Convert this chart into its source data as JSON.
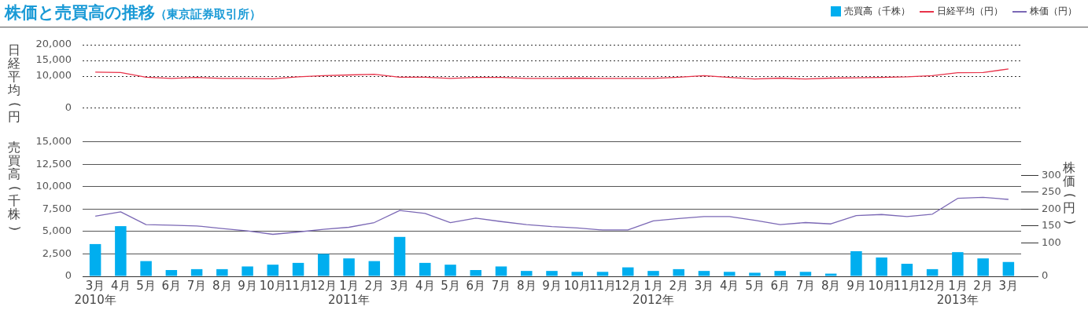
{
  "chart_data": [
    {
      "type": "line",
      "title": "株価と売買高の推移",
      "subtitle": "（東京証券取引所）",
      "ylabel": "日経平均(円)",
      "legend": "top right",
      "tick_labels": "y",
      "grid": "y",
      "categories": [
        null,
        null,
        null,
        null,
        null,
        null,
        null,
        null,
        null,
        null,
        null,
        null,
        null,
        null,
        null,
        null,
        null,
        null,
        null,
        null,
        null,
        null,
        null,
        null,
        null,
        null,
        null,
        null,
        null,
        null,
        null,
        null,
        null,
        null,
        null,
        null,
        null
      ],
      "ylim": [
        0,
        20000
      ],
      "yticks": [
        0,
        {
          "value": 10000,
          "label": "10,000"
        },
        {
          "value": 15000,
          "label": "15,000"
        },
        {
          "value": 20000,
          "label": "20,000"
        }
      ],
      "series": [
        {
          "name": "日経平均（円）",
          "color": "#e8334a",
          "values": [
            11300,
            11200,
            9700,
            9300,
            9600,
            9300,
            9300,
            9200,
            9800,
            10200,
            10400,
            10600,
            9700,
            9700,
            9300,
            9600,
            9600,
            9300,
            9300,
            9400,
            9300,
            9300,
            9300,
            9700,
            10200,
            9600,
            9100,
            9400,
            9100,
            9400,
            9500,
            9600,
            9800,
            10200,
            11100,
            11200,
            12300
          ]
        }
      ]
    },
    {
      "type": "bar",
      "ylabel": "売買高(千株)",
      "y2label": "株価(円)",
      "legend": "top right",
      "grid": "y",
      "categories": [
        "3月\n2010年",
        "4月",
        "5月",
        "6月",
        "7月",
        "8月",
        "9月",
        "10月",
        "11月",
        "12月",
        "1月\n2011年",
        "2月",
        "3月",
        "4月",
        "5月",
        "6月",
        "7月",
        "8月",
        "9月",
        "10月",
        "11月",
        "12月",
        "1月\n2012年",
        "2月",
        "3月",
        "4月",
        "5月",
        "6月",
        "7月",
        "8月",
        "9月",
        "10月",
        "11月",
        "12月",
        "1月\n2013年",
        "2月",
        "3月"
      ],
      "ylim": [
        0,
        15000
      ],
      "yticks": [
        0,
        {
          "value": 2500,
          "label": "2,500"
        },
        {
          "value": 5000,
          "label": "5,000"
        },
        {
          "value": 7500,
          "label": "7,500"
        },
        {
          "value": 10000,
          "label": "10,000"
        },
        {
          "value": 12500,
          "label": "12,500"
        },
        {
          "value": 15000,
          "label": "15,000"
        }
      ],
      "y2lim": [
        0,
        400
      ],
      "y2ticks": [
        0,
        100,
        150,
        200,
        250,
        300
      ],
      "series": [
        {
          "name": "売買高（千株）",
          "type": "bar",
          "color": "#00aeef",
          "values": [
            3600,
            5600,
            1700,
            700,
            800,
            800,
            1100,
            1300,
            1500,
            2500,
            2000,
            1700,
            4400,
            1500,
            1300,
            700,
            1100,
            600,
            600,
            500,
            500,
            1000,
            600,
            800,
            600,
            500,
            400,
            600,
            500,
            300,
            2800,
            2100,
            1400,
            800,
            2700,
            2000,
            1600
          ]
        },
        {
          "name": "株価（円）",
          "type": "line",
          "axis": "y2",
          "color": "#7b68b5",
          "values": [
            179,
            192,
            154,
            152,
            150,
            142,
            135,
            125,
            132,
            140,
            146,
            160,
            196,
            187,
            160,
            173,
            163,
            154,
            148,
            144,
            138,
            138,
            165,
            172,
            178,
            178,
            167,
            154,
            160,
            156,
            181,
            184,
            178,
            185,
            232,
            235,
            229
          ]
        }
      ]
    }
  ]
}
